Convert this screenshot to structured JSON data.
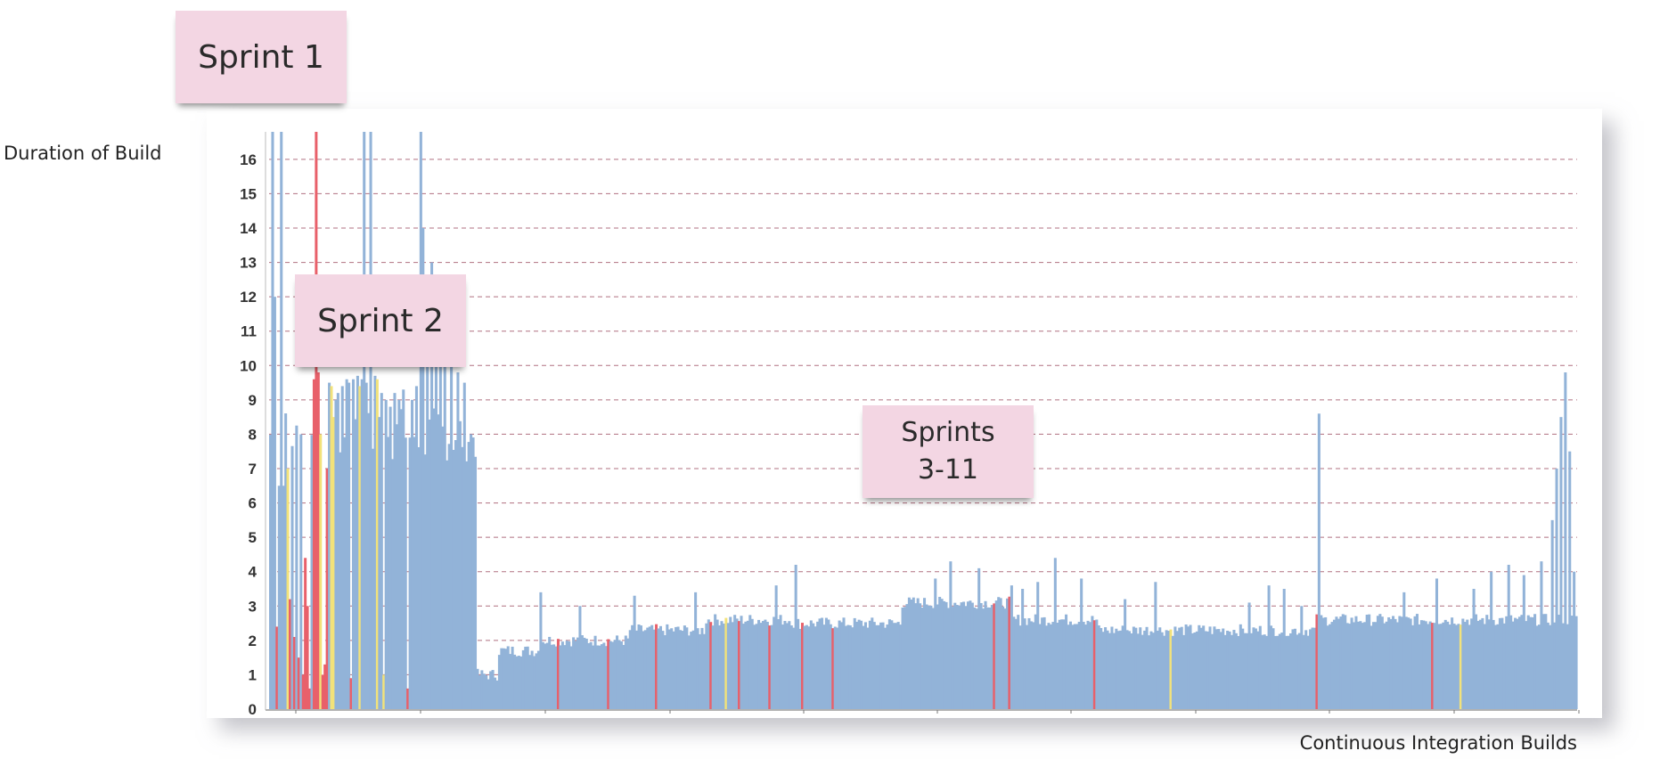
{
  "chart_data": {
    "type": "bar",
    "title": "",
    "ylabel": "Duration of Build",
    "xlabel": "Continuous Integration Builds",
    "ylim": [
      0,
      16.8
    ],
    "yticks": [
      0,
      1,
      2,
      3,
      4,
      5,
      6,
      7,
      8,
      9,
      10,
      11,
      12,
      13,
      14,
      15,
      16
    ],
    "grid": true,
    "colors": {
      "default": "#92b3d8",
      "red": "#e8606a",
      "yellow": "#f2e27a",
      "grid": "#b07080"
    },
    "n_builds": 600,
    "segments": [
      {
        "from": 0,
        "to": 95,
        "base": 8.0,
        "desc": "sprints 1-2, volatile"
      },
      {
        "from": 95,
        "to": 105,
        "base": 1.0
      },
      {
        "from": 105,
        "to": 125,
        "base": 1.7
      },
      {
        "from": 125,
        "to": 165,
        "base": 2.0
      },
      {
        "from": 165,
        "to": 200,
        "base": 2.3
      },
      {
        "from": 200,
        "to": 240,
        "base": 2.6
      },
      {
        "from": 240,
        "to": 290,
        "base": 2.5
      },
      {
        "from": 290,
        "to": 340,
        "base": 3.1
      },
      {
        "from": 340,
        "to": 380,
        "base": 2.6
      },
      {
        "from": 380,
        "to": 480,
        "base": 2.3
      },
      {
        "from": 480,
        "to": 600,
        "base": 2.6
      }
    ],
    "early_builds": [
      {
        "i": 1,
        "v": 16.8,
        "c": "default"
      },
      {
        "i": 2,
        "v": 12.0,
        "c": "default"
      },
      {
        "i": 3,
        "v": 2.4,
        "c": "red"
      },
      {
        "i": 4,
        "v": 6.5,
        "c": "default"
      },
      {
        "i": 5,
        "v": 16.8,
        "c": "default"
      },
      {
        "i": 6,
        "v": 6.5,
        "c": "default"
      },
      {
        "i": 8,
        "v": 7.0,
        "c": "yellow"
      },
      {
        "i": 9,
        "v": 3.2,
        "c": "red"
      },
      {
        "i": 11,
        "v": 2.1,
        "c": "red"
      },
      {
        "i": 13,
        "v": 1.5,
        "c": "red"
      },
      {
        "i": 15,
        "v": 1.0,
        "c": "red"
      },
      {
        "i": 16,
        "v": 4.4,
        "c": "red"
      },
      {
        "i": 17,
        "v": 3.0,
        "c": "red"
      },
      {
        "i": 18,
        "v": 0.6,
        "c": "red"
      },
      {
        "i": 20,
        "v": 9.6,
        "c": "red"
      },
      {
        "i": 21,
        "v": 16.8,
        "c": "red"
      },
      {
        "i": 22,
        "v": 9.8,
        "c": "red"
      },
      {
        "i": 23,
        "v": 8.0,
        "c": "yellow"
      },
      {
        "i": 24,
        "v": 1.0,
        "c": "red"
      },
      {
        "i": 25,
        "v": 1.3,
        "c": "red"
      },
      {
        "i": 26,
        "v": 7.0,
        "c": "red"
      },
      {
        "i": 27,
        "v": 9.5,
        "c": "default"
      },
      {
        "i": 28,
        "v": 9.4,
        "c": "yellow"
      },
      {
        "i": 29,
        "v": 8.5,
        "c": "yellow"
      },
      {
        "i": 30,
        "v": 9.0,
        "c": "default"
      },
      {
        "i": 31,
        "v": 9.2,
        "c": "default"
      },
      {
        "i": 33,
        "v": 9.4,
        "c": "default"
      },
      {
        "i": 35,
        "v": 9.6,
        "c": "default"
      },
      {
        "i": 36,
        "v": 9.5,
        "c": "default"
      },
      {
        "i": 37,
        "v": 0.9,
        "c": "red"
      },
      {
        "i": 38,
        "v": 9.6,
        "c": "default"
      },
      {
        "i": 40,
        "v": 9.7,
        "c": "default"
      },
      {
        "i": 41,
        "v": 9.4,
        "c": "yellow"
      },
      {
        "i": 42,
        "v": 9.6,
        "c": "default"
      },
      {
        "i": 43,
        "v": 16.8,
        "c": "default"
      },
      {
        "i": 44,
        "v": 9.5,
        "c": "default"
      },
      {
        "i": 46,
        "v": 16.8,
        "c": "default"
      },
      {
        "i": 48,
        "v": 9.7,
        "c": "default"
      },
      {
        "i": 49,
        "v": 9.6,
        "c": "yellow"
      },
      {
        "i": 50,
        "v": 8.5,
        "c": "default"
      },
      {
        "i": 51,
        "v": 9.2,
        "c": "default"
      },
      {
        "i": 52,
        "v": 1.0,
        "c": "yellow"
      },
      {
        "i": 53,
        "v": 9.0,
        "c": "default"
      },
      {
        "i": 55,
        "v": 8.8,
        "c": "default"
      },
      {
        "i": 57,
        "v": 9.2,
        "c": "default"
      },
      {
        "i": 59,
        "v": 9.0,
        "c": "default"
      },
      {
        "i": 61,
        "v": 9.3,
        "c": "default"
      },
      {
        "i": 63,
        "v": 0.6,
        "c": "red"
      },
      {
        "i": 65,
        "v": 9.0,
        "c": "default"
      },
      {
        "i": 67,
        "v": 9.4,
        "c": "default"
      },
      {
        "i": 69,
        "v": 16.8,
        "c": "default"
      },
      {
        "i": 70,
        "v": 14.0,
        "c": "default"
      },
      {
        "i": 72,
        "v": 12.0,
        "c": "default"
      },
      {
        "i": 74,
        "v": 13.0,
        "c": "default"
      },
      {
        "i": 76,
        "v": 12.5,
        "c": "default"
      },
      {
        "i": 78,
        "v": 11.0,
        "c": "default"
      },
      {
        "i": 80,
        "v": 10.5,
        "c": "default"
      },
      {
        "i": 83,
        "v": 10.0,
        "c": "default"
      },
      {
        "i": 86,
        "v": 9.8,
        "c": "default"
      },
      {
        "i": 89,
        "v": 9.5,
        "c": "default"
      },
      {
        "i": 92,
        "v": 8.0,
        "c": "default"
      }
    ],
    "failed_builds": [
      132,
      155,
      177,
      202,
      215,
      229,
      244,
      258,
      332,
      339,
      378,
      480,
      533
    ],
    "unstable_builds": [
      209,
      413,
      546
    ],
    "spikes": [
      {
        "i": 124,
        "v": 3.4
      },
      {
        "i": 142,
        "v": 3.0
      },
      {
        "i": 167,
        "v": 3.3
      },
      {
        "i": 195,
        "v": 3.4
      },
      {
        "i": 232,
        "v": 3.6
      },
      {
        "i": 241,
        "v": 4.2
      },
      {
        "i": 305,
        "v": 3.8
      },
      {
        "i": 312,
        "v": 4.3
      },
      {
        "i": 325,
        "v": 4.1
      },
      {
        "i": 340,
        "v": 3.6
      },
      {
        "i": 345,
        "v": 3.5
      },
      {
        "i": 352,
        "v": 3.7
      },
      {
        "i": 360,
        "v": 4.4
      },
      {
        "i": 372,
        "v": 3.8
      },
      {
        "i": 392,
        "v": 3.2
      },
      {
        "i": 406,
        "v": 3.7
      },
      {
        "i": 449,
        "v": 3.1
      },
      {
        "i": 458,
        "v": 3.6
      },
      {
        "i": 465,
        "v": 3.5
      },
      {
        "i": 473,
        "v": 3.0
      },
      {
        "i": 481,
        "v": 8.6
      },
      {
        "i": 520,
        "v": 3.4
      },
      {
        "i": 535,
        "v": 3.8
      },
      {
        "i": 552,
        "v": 3.5
      },
      {
        "i": 560,
        "v": 4.0
      },
      {
        "i": 568,
        "v": 4.2
      },
      {
        "i": 575,
        "v": 3.9
      },
      {
        "i": 583,
        "v": 4.3
      },
      {
        "i": 588,
        "v": 5.5
      },
      {
        "i": 590,
        "v": 7.0
      },
      {
        "i": 592,
        "v": 8.5
      },
      {
        "i": 594,
        "v": 9.8
      },
      {
        "i": 596,
        "v": 7.5
      },
      {
        "i": 598,
        "v": 4.0
      }
    ]
  },
  "annotations": {
    "sprint1": "Sprint 1",
    "sprint2": "Sprint 2",
    "sprints3_11": "Sprints\n3-11"
  }
}
